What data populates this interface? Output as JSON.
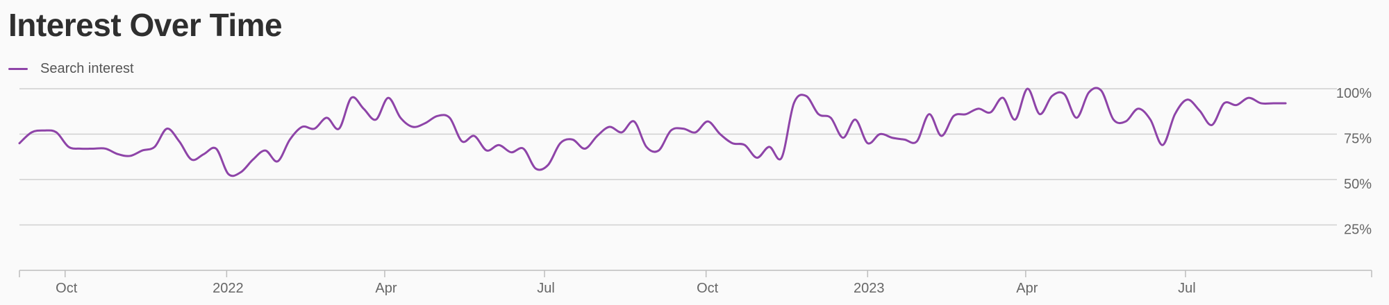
{
  "title": "Interest Over Time",
  "legend": {
    "label": "Search interest",
    "color": "#8e44a8"
  },
  "colors": {
    "line": "#8e44a8",
    "grid": "#cfcfcf",
    "axis": "#bdbdbd",
    "text": "#666666"
  },
  "chart_data": {
    "type": "line",
    "title": "Interest Over Time",
    "xlabel": "",
    "ylabel": "",
    "ylim": [
      0,
      100
    ],
    "grid": true,
    "legend_position": "top-left",
    "y_ticks": [
      {
        "value": 100,
        "label": "100%"
      },
      {
        "value": 75,
        "label": "75%"
      },
      {
        "value": 50,
        "label": "50%"
      },
      {
        "value": 25,
        "label": "25%"
      }
    ],
    "x_ticks": [
      {
        "date": "2021-10-01",
        "label": "Oct"
      },
      {
        "date": "2022-01-01",
        "label": "2022"
      },
      {
        "date": "2022-04-01",
        "label": "Apr"
      },
      {
        "date": "2022-07-01",
        "label": "Jul"
      },
      {
        "date": "2022-10-01",
        "label": "Oct"
      },
      {
        "date": "2023-01-01",
        "label": "2023"
      },
      {
        "date": "2023-04-01",
        "label": "Apr"
      },
      {
        "date": "2023-07-01",
        "label": "Jul"
      }
    ],
    "x_range": [
      "2021-09-05",
      "2023-10-15"
    ],
    "series": [
      {
        "name": "Search interest",
        "points": [
          [
            "2021-09-05",
            70
          ],
          [
            "2021-09-12",
            76
          ],
          [
            "2021-09-19",
            77
          ],
          [
            "2021-09-26",
            76
          ],
          [
            "2021-10-03",
            68
          ],
          [
            "2021-10-10",
            67
          ],
          [
            "2021-10-17",
            67
          ],
          [
            "2021-10-24",
            67
          ],
          [
            "2021-10-31",
            64
          ],
          [
            "2021-11-07",
            63
          ],
          [
            "2021-11-14",
            66
          ],
          [
            "2021-11-21",
            68
          ],
          [
            "2021-11-28",
            78
          ],
          [
            "2021-12-05",
            71
          ],
          [
            "2021-12-12",
            61
          ],
          [
            "2021-12-19",
            64
          ],
          [
            "2021-12-26",
            67
          ],
          [
            "2022-01-02",
            53
          ],
          [
            "2022-01-09",
            54
          ],
          [
            "2022-01-16",
            61
          ],
          [
            "2022-01-23",
            66
          ],
          [
            "2022-01-30",
            60
          ],
          [
            "2022-02-06",
            72
          ],
          [
            "2022-02-13",
            79
          ],
          [
            "2022-02-20",
            78
          ],
          [
            "2022-02-27",
            84
          ],
          [
            "2022-03-06",
            78
          ],
          [
            "2022-03-13",
            95
          ],
          [
            "2022-03-20",
            89
          ],
          [
            "2022-03-27",
            83
          ],
          [
            "2022-04-03",
            95
          ],
          [
            "2022-04-10",
            84
          ],
          [
            "2022-04-17",
            79
          ],
          [
            "2022-04-24",
            81
          ],
          [
            "2022-05-01",
            85
          ],
          [
            "2022-05-08",
            84
          ],
          [
            "2022-05-15",
            71
          ],
          [
            "2022-05-22",
            74
          ],
          [
            "2022-05-29",
            66
          ],
          [
            "2022-06-05",
            69
          ],
          [
            "2022-06-12",
            65
          ],
          [
            "2022-06-19",
            67
          ],
          [
            "2022-06-26",
            56
          ],
          [
            "2022-07-03",
            58
          ],
          [
            "2022-07-10",
            70
          ],
          [
            "2022-07-17",
            72
          ],
          [
            "2022-07-24",
            67
          ],
          [
            "2022-07-31",
            74
          ],
          [
            "2022-08-07",
            79
          ],
          [
            "2022-08-14",
            76
          ],
          [
            "2022-08-21",
            82
          ],
          [
            "2022-08-28",
            68
          ],
          [
            "2022-09-04",
            66
          ],
          [
            "2022-09-11",
            77
          ],
          [
            "2022-09-18",
            78
          ],
          [
            "2022-09-25",
            76
          ],
          [
            "2022-10-02",
            82
          ],
          [
            "2022-10-09",
            75
          ],
          [
            "2022-10-16",
            70
          ],
          [
            "2022-10-23",
            69
          ],
          [
            "2022-10-30",
            62
          ],
          [
            "2022-11-06",
            68
          ],
          [
            "2022-11-13",
            62
          ],
          [
            "2022-11-20",
            92
          ],
          [
            "2022-11-27",
            96
          ],
          [
            "2022-12-04",
            86
          ],
          [
            "2022-12-11",
            84
          ],
          [
            "2022-12-18",
            73
          ],
          [
            "2022-12-25",
            83
          ],
          [
            "2023-01-01",
            70
          ],
          [
            "2023-01-08",
            75
          ],
          [
            "2023-01-15",
            73
          ],
          [
            "2023-01-22",
            72
          ],
          [
            "2023-01-29",
            71
          ],
          [
            "2023-02-05",
            86
          ],
          [
            "2023-02-12",
            74
          ],
          [
            "2023-02-19",
            85
          ],
          [
            "2023-02-26",
            86
          ],
          [
            "2023-03-05",
            89
          ],
          [
            "2023-03-12",
            87
          ],
          [
            "2023-03-19",
            95
          ],
          [
            "2023-03-26",
            83
          ],
          [
            "2023-04-02",
            100
          ],
          [
            "2023-04-09",
            86
          ],
          [
            "2023-04-16",
            96
          ],
          [
            "2023-04-23",
            97
          ],
          [
            "2023-04-30",
            84
          ],
          [
            "2023-05-07",
            98
          ],
          [
            "2023-05-14",
            99
          ],
          [
            "2023-05-21",
            83
          ],
          [
            "2023-05-28",
            82
          ],
          [
            "2023-06-04",
            89
          ],
          [
            "2023-06-11",
            83
          ],
          [
            "2023-06-18",
            69
          ],
          [
            "2023-06-25",
            86
          ],
          [
            "2023-07-02",
            94
          ],
          [
            "2023-07-09",
            88
          ],
          [
            "2023-07-16",
            80
          ],
          [
            "2023-07-23",
            92
          ],
          [
            "2023-07-30",
            91
          ],
          [
            "2023-08-06",
            95
          ],
          [
            "2023-08-13",
            92
          ],
          [
            "2023-08-20",
            92
          ],
          [
            "2023-08-27",
            92
          ]
        ]
      }
    ]
  }
}
